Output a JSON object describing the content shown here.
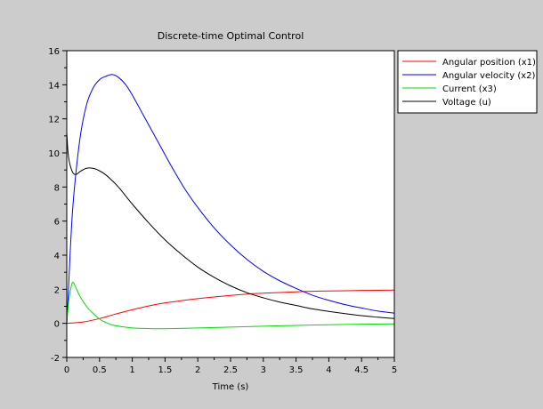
{
  "chart_data": {
    "type": "line",
    "title": "Discrete-time Optimal Control",
    "xlabel": "Time (s)",
    "ylabel": "",
    "xlim": [
      0,
      5
    ],
    "ylim": [
      -2,
      16
    ],
    "x_ticks": [
      "0",
      "0.5",
      "1",
      "1.5",
      "2",
      "2.5",
      "3",
      "3.5",
      "4",
      "4.5",
      "5"
    ],
    "y_ticks": [
      "-2",
      "0",
      "2",
      "4",
      "6",
      "8",
      "10",
      "12",
      "14",
      "16"
    ],
    "grid": false,
    "legend_position": "outside-top-right",
    "series": [
      {
        "name": "Angular position (x1)",
        "color": "#ff0000",
        "points": [
          [
            0,
            0
          ],
          [
            0.25,
            0.08
          ],
          [
            0.5,
            0.28
          ],
          [
            0.75,
            0.55
          ],
          [
            1.0,
            0.8
          ],
          [
            1.25,
            1.02
          ],
          [
            1.5,
            1.2
          ],
          [
            1.75,
            1.33
          ],
          [
            2.0,
            1.45
          ],
          [
            2.25,
            1.55
          ],
          [
            2.5,
            1.64
          ],
          [
            2.75,
            1.72
          ],
          [
            3.0,
            1.77
          ],
          [
            3.25,
            1.81
          ],
          [
            3.5,
            1.85
          ],
          [
            3.75,
            1.88
          ],
          [
            4.0,
            1.9
          ],
          [
            4.25,
            1.91
          ],
          [
            4.5,
            1.93
          ],
          [
            4.75,
            1.94
          ],
          [
            5.0,
            1.95
          ]
        ]
      },
      {
        "name": "Angular velocity (x2)",
        "color": "#0000ff",
        "points": [
          [
            0,
            0
          ],
          [
            0.02,
            1.5
          ],
          [
            0.05,
            4
          ],
          [
            0.1,
            7.2
          ],
          [
            0.2,
            10.8
          ],
          [
            0.3,
            12.8
          ],
          [
            0.4,
            13.8
          ],
          [
            0.5,
            14.3
          ],
          [
            0.6,
            14.5
          ],
          [
            0.7,
            14.6
          ],
          [
            0.8,
            14.4
          ],
          [
            0.9,
            14.0
          ],
          [
            1.0,
            13.4
          ],
          [
            1.2,
            12.0
          ],
          [
            1.4,
            10.6
          ],
          [
            1.6,
            9.2
          ],
          [
            1.8,
            7.9
          ],
          [
            2.0,
            6.8
          ],
          [
            2.25,
            5.6
          ],
          [
            2.5,
            4.6
          ],
          [
            2.75,
            3.75
          ],
          [
            3.0,
            3.05
          ],
          [
            3.25,
            2.5
          ],
          [
            3.5,
            2.05
          ],
          [
            3.75,
            1.65
          ],
          [
            4.0,
            1.35
          ],
          [
            4.25,
            1.1
          ],
          [
            4.5,
            0.9
          ],
          [
            4.75,
            0.72
          ],
          [
            5.0,
            0.6
          ]
        ]
      },
      {
        "name": "Current (x3)",
        "color": "#00dd00",
        "points": [
          [
            0,
            0
          ],
          [
            0.03,
            1.3
          ],
          [
            0.07,
            2.2
          ],
          [
            0.1,
            2.4
          ],
          [
            0.15,
            2.0
          ],
          [
            0.2,
            1.6
          ],
          [
            0.3,
            1.0
          ],
          [
            0.4,
            0.6
          ],
          [
            0.5,
            0.25
          ],
          [
            0.6,
            0.05
          ],
          [
            0.7,
            -0.1
          ],
          [
            0.85,
            -0.2
          ],
          [
            1.0,
            -0.27
          ],
          [
            1.2,
            -0.3
          ],
          [
            1.4,
            -0.32
          ],
          [
            1.6,
            -0.31
          ],
          [
            1.8,
            -0.29
          ],
          [
            2.0,
            -0.27
          ],
          [
            2.5,
            -0.22
          ],
          [
            3.0,
            -0.17
          ],
          [
            3.5,
            -0.12
          ],
          [
            4.0,
            -0.08
          ],
          [
            4.5,
            -0.05
          ],
          [
            5.0,
            -0.03
          ]
        ]
      },
      {
        "name": "Voltage (u)",
        "color": "#000000",
        "points": [
          [
            0,
            11.2
          ],
          [
            0.02,
            10.0
          ],
          [
            0.05,
            9.3
          ],
          [
            0.1,
            8.8
          ],
          [
            0.15,
            8.75
          ],
          [
            0.2,
            8.9
          ],
          [
            0.3,
            9.1
          ],
          [
            0.4,
            9.1
          ],
          [
            0.5,
            8.95
          ],
          [
            0.6,
            8.7
          ],
          [
            0.7,
            8.35
          ],
          [
            0.8,
            7.95
          ],
          [
            1.0,
            7.0
          ],
          [
            1.25,
            5.9
          ],
          [
            1.5,
            4.9
          ],
          [
            1.75,
            4.05
          ],
          [
            2.0,
            3.3
          ],
          [
            2.25,
            2.7
          ],
          [
            2.5,
            2.2
          ],
          [
            2.75,
            1.8
          ],
          [
            3.0,
            1.5
          ],
          [
            3.25,
            1.25
          ],
          [
            3.5,
            1.05
          ],
          [
            3.75,
            0.85
          ],
          [
            4.0,
            0.7
          ],
          [
            4.25,
            0.57
          ],
          [
            4.5,
            0.45
          ],
          [
            4.75,
            0.36
          ],
          [
            5.0,
            0.28
          ]
        ]
      }
    ]
  }
}
